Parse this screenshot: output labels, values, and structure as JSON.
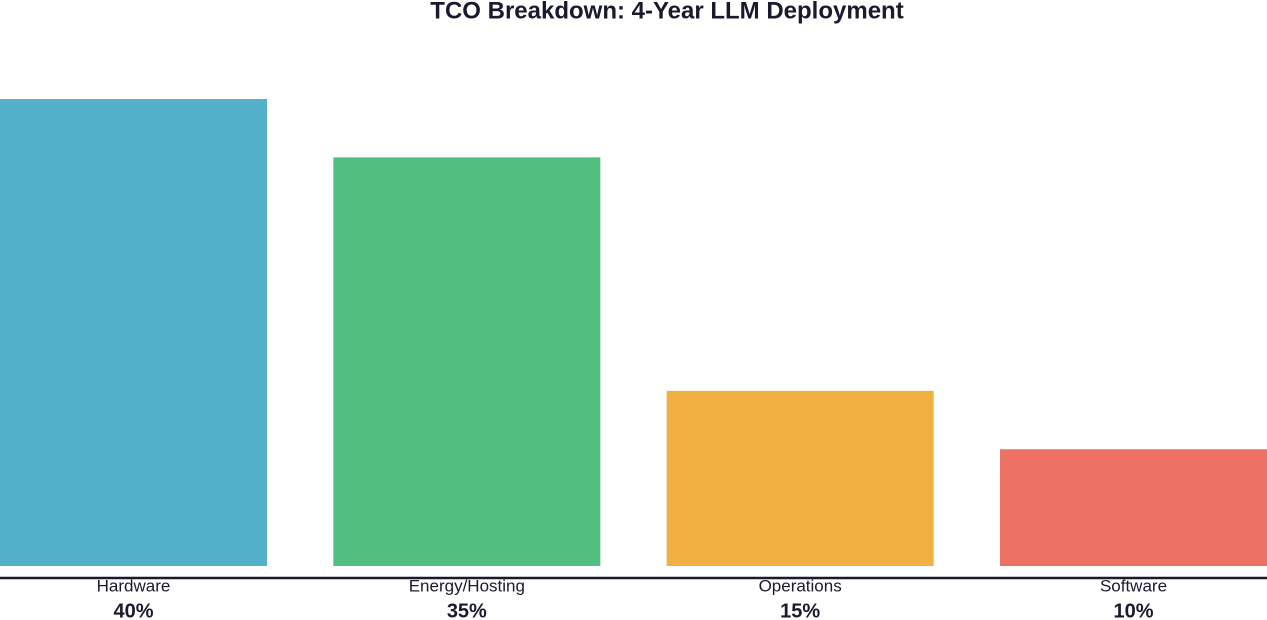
{
  "chart_data": {
    "type": "bar",
    "title": "TCO Breakdown: 4-Year LLM Deployment",
    "categories": [
      "Hardware",
      "Energy/Hosting",
      "Operations",
      "Software"
    ],
    "values": [
      40,
      35,
      15,
      10
    ],
    "value_labels": [
      "40%",
      "35%",
      "15%",
      "10%"
    ],
    "colors": [
      "#54b1cb",
      "#52bf81",
      "#f3b042",
      "#ec7064"
    ]
  }
}
